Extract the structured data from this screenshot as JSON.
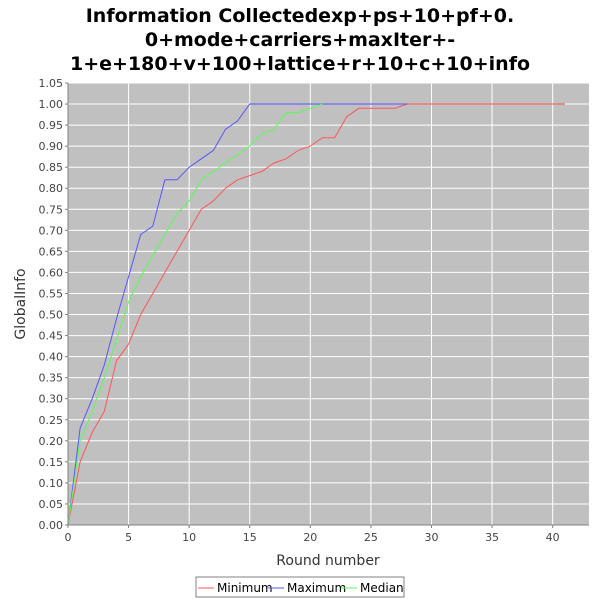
{
  "chart_data": {
    "type": "line",
    "title_lines": [
      "Information Collectedexp+ps+10+pf+0.",
      "0+mode+carriers+maxIter+-",
      "1+e+180+v+100+lattice+r+10+c+10+info"
    ],
    "xlabel": "Round number",
    "ylabel": "GlobalInfo",
    "xlim": [
      0,
      43
    ],
    "ylim": [
      0,
      1.05
    ],
    "x_ticks": [
      0,
      5,
      10,
      15,
      20,
      25,
      30,
      35,
      40
    ],
    "y_ticks": [
      "0.00",
      "0.05",
      "0.10",
      "0.15",
      "0.20",
      "0.25",
      "0.30",
      "0.35",
      "0.40",
      "0.45",
      "0.50",
      "0.55",
      "0.60",
      "0.65",
      "0.70",
      "0.75",
      "0.80",
      "0.85",
      "0.90",
      "0.95",
      "1.00",
      "1.05"
    ],
    "grid": true,
    "legend_position": "bottom",
    "colors": {
      "plot_background": "#c0c0c0",
      "gridline": "#ffffff",
      "Minimum": "#ff5555",
      "Maximum": "#5555ff",
      "Median": "#55ff55"
    },
    "series": [
      {
        "name": "Minimum",
        "x": [
          0,
          1,
          2,
          3,
          4,
          5,
          6,
          7,
          8,
          9,
          10,
          11,
          12,
          13,
          14,
          15,
          16,
          17,
          18,
          19,
          20,
          21,
          22,
          23,
          24,
          25,
          26,
          27,
          28,
          29,
          30,
          31,
          32,
          33,
          34,
          35,
          36,
          37,
          38,
          39,
          40,
          41
        ],
        "values": [
          0.0,
          0.15,
          0.22,
          0.27,
          0.39,
          0.43,
          0.5,
          0.55,
          0.6,
          0.65,
          0.7,
          0.75,
          0.77,
          0.8,
          0.82,
          0.83,
          0.84,
          0.86,
          0.87,
          0.89,
          0.9,
          0.92,
          0.92,
          0.97,
          0.99,
          0.99,
          0.99,
          0.99,
          1.0,
          1.0,
          1.0,
          1.0,
          1.0,
          1.0,
          1.0,
          1.0,
          1.0,
          1.0,
          1.0,
          1.0,
          1.0,
          1.0
        ]
      },
      {
        "name": "Maximum",
        "x": [
          0,
          1,
          2,
          3,
          4,
          5,
          6,
          7,
          8,
          9,
          10,
          11,
          12,
          13,
          14,
          15,
          16,
          17,
          18,
          19,
          20,
          21,
          22,
          23,
          24,
          25,
          26,
          27,
          28
        ],
        "values": [
          0.0,
          0.23,
          0.3,
          0.38,
          0.49,
          0.59,
          0.69,
          0.71,
          0.82,
          0.82,
          0.85,
          0.87,
          0.89,
          0.94,
          0.96,
          1.0,
          1.0,
          1.0,
          1.0,
          1.0,
          1.0,
          1.0,
          1.0,
          1.0,
          1.0,
          1.0,
          1.0,
          1.0,
          1.0
        ]
      },
      {
        "name": "Median",
        "x": [
          0,
          1,
          2,
          3,
          4,
          5,
          6,
          7,
          8,
          9,
          10,
          11,
          12,
          13,
          14,
          15,
          16,
          17,
          18,
          19,
          20,
          21
        ],
        "values": [
          0.0,
          0.2,
          0.27,
          0.35,
          0.44,
          0.53,
          0.59,
          0.64,
          0.69,
          0.74,
          0.77,
          0.82,
          0.84,
          0.86,
          0.88,
          0.9,
          0.93,
          0.94,
          0.98,
          0.98,
          0.99,
          1.0
        ]
      }
    ]
  }
}
